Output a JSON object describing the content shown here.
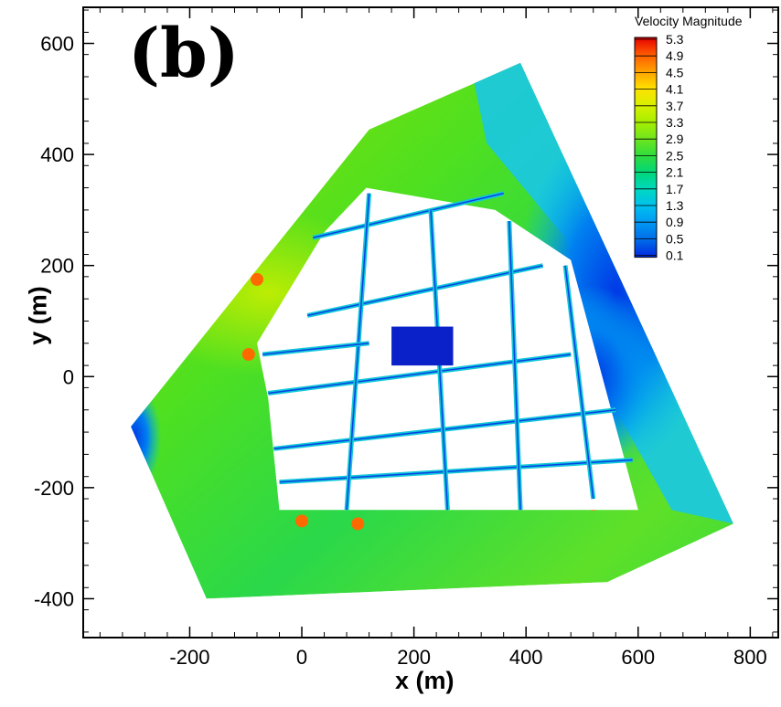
{
  "panel_label": "(b)",
  "chart_data": {
    "type": "heatmap",
    "title": "",
    "xlabel": "x (m)",
    "ylabel": "y (m)",
    "xlim": [
      -390,
      850
    ],
    "ylim": [
      -470,
      665
    ],
    "xticks": [
      -200,
      0,
      200,
      400,
      600,
      800
    ],
    "yticks": [
      600,
      400,
      200,
      0,
      -200,
      -400
    ],
    "xtick_labels": [
      "-200",
      "0",
      "200",
      "400",
      "600",
      "800"
    ],
    "ytick_labels": [
      "600",
      "400",
      "200",
      "0",
      "-200",
      "-400"
    ],
    "domain_polygon": [
      [
        -305,
        -90
      ],
      [
        120,
        445
      ],
      [
        390,
        565
      ],
      [
        770,
        -265
      ],
      [
        545,
        -370
      ],
      [
        -170,
        -400
      ]
    ],
    "legend": {
      "title": "Velocity Magnitude",
      "placement": "top-right",
      "levels": [
        "5.3",
        "4.9",
        "4.5",
        "4.1",
        "3.7",
        "3.3",
        "2.9",
        "2.5",
        "2.1",
        "1.7",
        "1.3",
        "0.9",
        "0.5",
        "0.1"
      ],
      "colors": [
        "#e60000",
        "#ff5a00",
        "#ffa000",
        "#ffe000",
        "#d8f000",
        "#a8ee00",
        "#6ee61e",
        "#2fdc3c",
        "#00d77a",
        "#00d8c0",
        "#00bff0",
        "#0096f2",
        "#006ae8",
        "#0028e0"
      ]
    },
    "colormap": "rainbow",
    "grid": false
  }
}
